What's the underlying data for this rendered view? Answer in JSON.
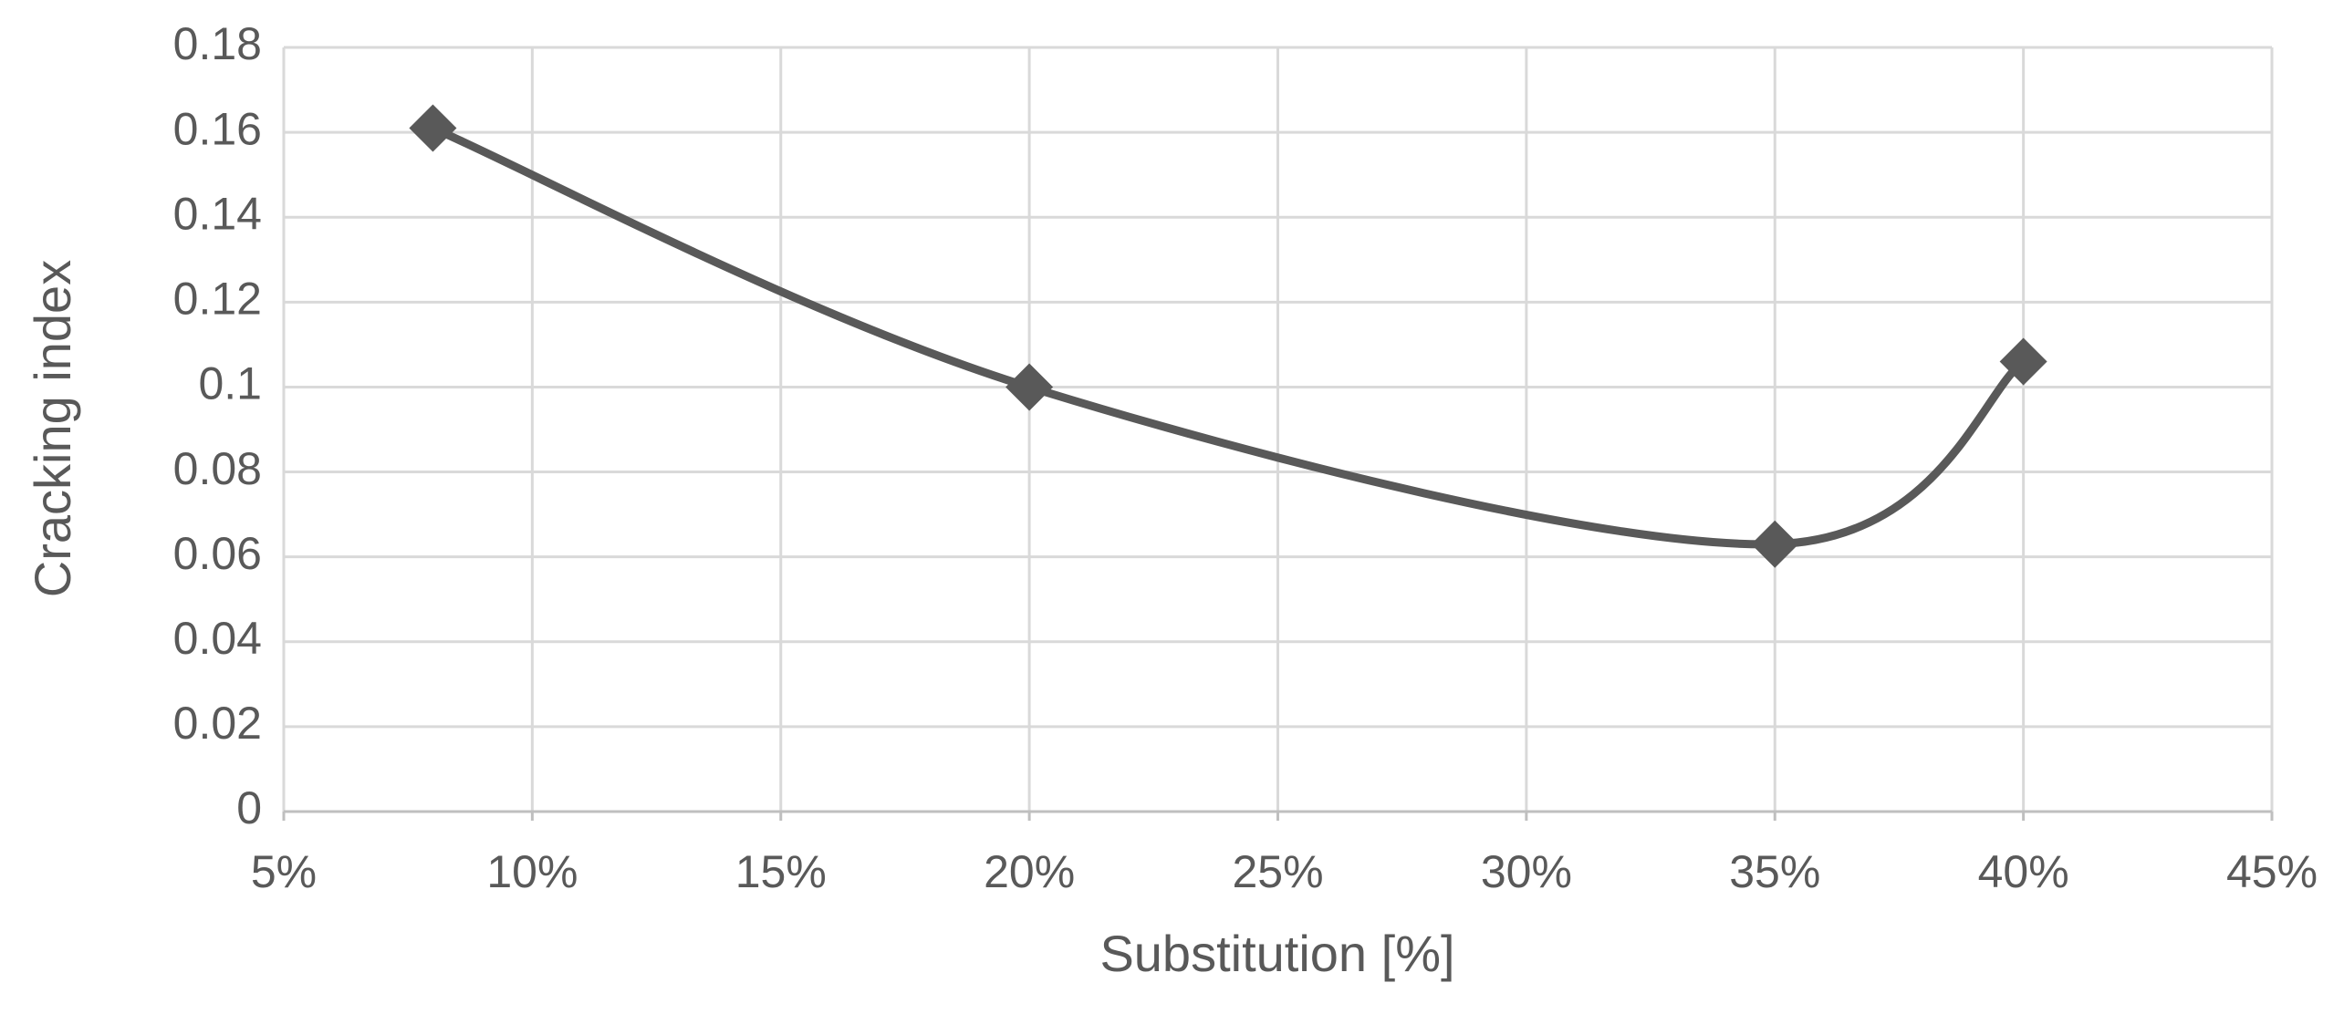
{
  "chart_data": {
    "type": "line",
    "smooth": true,
    "marker": "diamond",
    "x_label": "Substitution [%]",
    "y_label": "Cracking index",
    "x": [
      8,
      20,
      35,
      40
    ],
    "values": [
      0.161,
      0.1,
      0.063,
      0.106
    ],
    "color": "#595959",
    "xlim": [
      5,
      45
    ],
    "xticks": [
      {
        "value": 5,
        "label": "5%"
      },
      {
        "value": 10,
        "label": "10%"
      },
      {
        "value": 15,
        "label": "15%"
      },
      {
        "value": 20,
        "label": "20%"
      },
      {
        "value": 25,
        "label": "25%"
      },
      {
        "value": 30,
        "label": "30%"
      },
      {
        "value": 35,
        "label": "35%"
      },
      {
        "value": 40,
        "label": "40%"
      },
      {
        "value": 45,
        "label": "45%"
      }
    ],
    "ylim": [
      0,
      0.18
    ],
    "yticks": [
      0,
      0.02,
      0.04,
      0.06,
      0.08,
      0.1,
      0.12,
      0.14,
      0.16,
      0.18
    ],
    "grid": true
  }
}
